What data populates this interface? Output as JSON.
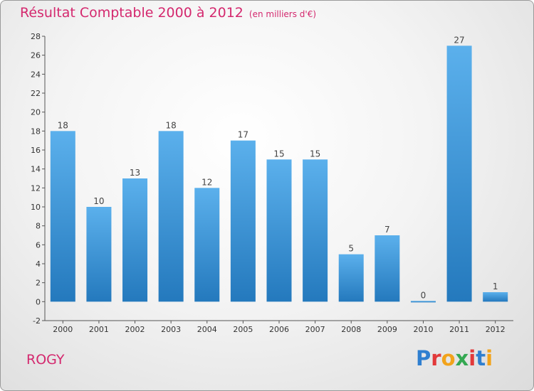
{
  "header": {
    "title": "Résultat Comptable 2000 à 2012",
    "subtitle": "(en milliers d'€)"
  },
  "footer": {
    "commune": "ROGY",
    "logo_letters": [
      "P",
      "r",
      "o",
      "x",
      "i",
      "t",
      "i"
    ],
    "logo_colors": [
      "#2f7fd0",
      "#e2393a",
      "#f2a31b",
      "#34a852",
      "#e2393a",
      "#2f7fd0",
      "#f2a31b"
    ]
  },
  "colors": {
    "accent": "#d4286e",
    "bar_light": "#5bb0ec",
    "bar_dark": "#2479bd"
  },
  "chart_data": {
    "type": "bar",
    "title": "Résultat Comptable 2000 à 2012",
    "subtitle": "(en milliers d'€)",
    "xlabel": "",
    "ylabel": "",
    "categories": [
      "2000",
      "2001",
      "2002",
      "2003",
      "2004",
      "2005",
      "2006",
      "2007",
      "2008",
      "2009",
      "2010",
      "2011",
      "2012"
    ],
    "values": [
      18,
      10,
      13,
      18,
      12,
      17,
      15,
      15,
      5,
      7,
      0,
      27,
      1
    ],
    "ylim": [
      -2,
      28
    ],
    "yticks": [
      -2,
      0,
      2,
      4,
      6,
      8,
      10,
      12,
      14,
      16,
      18,
      20,
      22,
      24,
      26,
      28
    ],
    "grid": false,
    "legend": "none"
  }
}
